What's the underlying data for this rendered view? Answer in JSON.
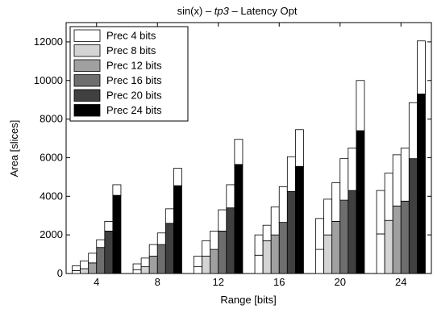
{
  "chart_data": {
    "type": "bar",
    "title": {
      "prefix": "sin(x) – ",
      "italic": "tp3",
      "suffix": " – Latency Opt"
    },
    "xlabel": "Range [bits]",
    "ylabel": "Area [slices]",
    "ylim": [
      0,
      13000
    ],
    "yticks": [
      0,
      2000,
      4000,
      6000,
      8000,
      10000,
      12000
    ],
    "categories": [
      "4",
      "8",
      "12",
      "16",
      "20",
      "24"
    ],
    "stacked_bars": true,
    "legend_position": "top-left",
    "grid": false,
    "series": [
      {
        "name": "Prec 4 bits",
        "color": "#ffffff",
        "lower": [
          150,
          200,
          350,
          950,
          1250,
          2050
        ],
        "values": [
          400,
          500,
          900,
          2000,
          2850,
          4300
        ]
      },
      {
        "name": "Prec 8 bits",
        "color": "#d4d4d4",
        "lower": [
          250,
          350,
          900,
          1700,
          2000,
          2750
        ],
        "values": [
          650,
          800,
          1700,
          2500,
          3850,
          5200
        ]
      },
      {
        "name": "Prec 12 bits",
        "color": "#a0a0a0",
        "lower": [
          550,
          900,
          1250,
          2000,
          2700,
          3500
        ],
        "values": [
          1050,
          1500,
          2200,
          3450,
          4700,
          6150
        ]
      },
      {
        "name": "Prec 16 bits",
        "color": "#6e6e6e",
        "lower": [
          1350,
          1500,
          2200,
          2650,
          3800,
          3750
        ],
        "values": [
          1750,
          2100,
          3300,
          4500,
          5950,
          6500
        ]
      },
      {
        "name": "Prec 20 bits",
        "color": "#404040",
        "lower": [
          2200,
          2600,
          3400,
          4250,
          4300,
          5950
        ],
        "values": [
          2700,
          3350,
          4600,
          6050,
          6500,
          8850
        ]
      },
      {
        "name": "Prec 24 bits",
        "color": "#000000",
        "lower": [
          4050,
          4550,
          5650,
          5550,
          7400,
          9300
        ],
        "values": [
          4600,
          5450,
          6950,
          7450,
          10000,
          12050
        ]
      }
    ]
  }
}
